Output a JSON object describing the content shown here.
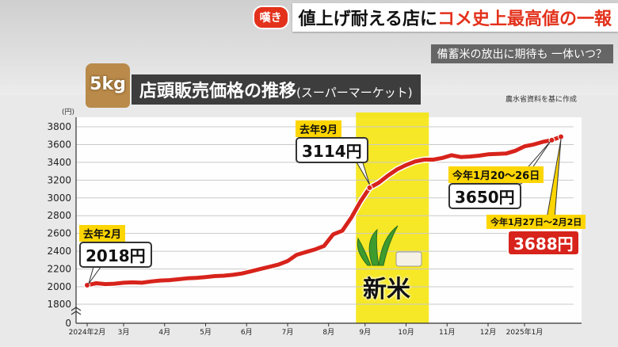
{
  "headline": {
    "tag": "嘆き",
    "part1": "値上げ耐える店に",
    "part2": "コメ史上最高値の一報"
  },
  "subhead": "備蓄米の放出に期待も 一体いつ？",
  "badge": "5kg",
  "title": {
    "main": "店頭販売価格の推移",
    "sub": "(スーパーマーケット)"
  },
  "source": "農水省資料を基に作成",
  "annotations": {
    "feb_tag": "去年2月",
    "feb_value": "2018円",
    "sep_tag": "去年9月",
    "sep_value": "3114円",
    "jan_tag": "今年1月20～26日",
    "jan_value": "3650円",
    "last_tag": "今年1月27日～2月2日",
    "last_value": "3688円"
  },
  "new_rice": "新米",
  "colors": {
    "line": "#d7231b",
    "highlight": "#f4e400",
    "tag": "#fdd500"
  },
  "chart_data": {
    "type": "line",
    "title": "店頭販売価格の推移(スーパーマーケット)",
    "ylabel": "(円)",
    "ylim": [
      0,
      3800
    ],
    "yticks": [
      0,
      1800,
      2000,
      2200,
      2400,
      2600,
      2800,
      3000,
      3200,
      3400,
      3600,
      3800
    ],
    "ytick_labels": [
      "0",
      "1800",
      "2000",
      "2200",
      "2400",
      "2600",
      "2800",
      "3000",
      "3200",
      "3400",
      "3600",
      "3800"
    ],
    "xtick_labels": [
      "2024年2月",
      "3月",
      "4月",
      "5月",
      "6月",
      "7月",
      "8月",
      "9月",
      "10月",
      "11月",
      "12月",
      "2025年1月"
    ],
    "xtick_weeks": [
      0,
      4,
      8.5,
      13,
      17.5,
      22,
      26.5,
      30.5,
      35,
      39.5,
      44,
      48
    ],
    "highlight_weeks": [
      29.5,
      37.5
    ],
    "series": [
      {
        "values": [
          [
            0,
            2018
          ],
          [
            1,
            2040
          ],
          [
            2,
            2030
          ],
          [
            3,
            2035
          ],
          [
            4,
            2045
          ],
          [
            5,
            2050
          ],
          [
            6,
            2045
          ],
          [
            7,
            2060
          ],
          [
            8,
            2070
          ],
          [
            9,
            2075
          ],
          [
            10,
            2085
          ],
          [
            11,
            2095
          ],
          [
            12,
            2100
          ],
          [
            13,
            2110
          ],
          [
            14,
            2120
          ],
          [
            15,
            2125
          ],
          [
            16,
            2135
          ],
          [
            17,
            2150
          ],
          [
            18,
            2175
          ],
          [
            19,
            2200
          ],
          [
            20,
            2225
          ],
          [
            21,
            2250
          ],
          [
            22,
            2290
          ],
          [
            23,
            2360
          ],
          [
            24,
            2390
          ],
          [
            25,
            2420
          ],
          [
            26,
            2460
          ],
          [
            27,
            2590
          ],
          [
            28,
            2630
          ],
          [
            29,
            2780
          ],
          [
            30,
            2960
          ],
          [
            31,
            3114
          ],
          [
            32,
            3170
          ],
          [
            33,
            3250
          ],
          [
            34,
            3320
          ],
          [
            35,
            3370
          ],
          [
            36,
            3410
          ],
          [
            37,
            3430
          ],
          [
            38,
            3430
          ],
          [
            39,
            3450
          ],
          [
            40,
            3480
          ],
          [
            41,
            3460
          ],
          [
            42,
            3465
          ],
          [
            43,
            3475
          ],
          [
            44,
            3490
          ],
          [
            45,
            3495
          ],
          [
            46,
            3500
          ],
          [
            47,
            3530
          ],
          [
            48,
            3580
          ],
          [
            49,
            3600
          ],
          [
            50,
            3630
          ],
          [
            51,
            3650
          ],
          [
            52,
            3688
          ]
        ]
      }
    ]
  }
}
